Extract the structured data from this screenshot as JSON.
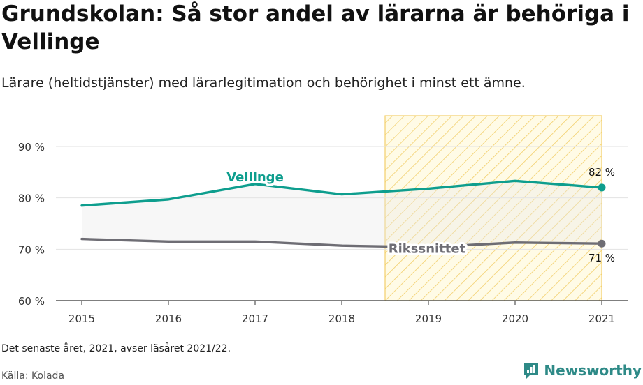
{
  "title": "Grundskolan: Så stor andel av lärarna är behöriga i Vellinge",
  "subtitle": "Lärare (heltidstjänster) med lärarlegitimation och behörighet i minst ett ämne.",
  "note": "Det senaste året, 2021, avser läsåret 2021/22.",
  "source": "Källa: Kolada",
  "brand": {
    "name": "Newsworthy",
    "icon": "bar-chart-logo-icon",
    "color": "#2e8a87"
  },
  "chart_data": {
    "type": "line",
    "x": [
      2015,
      2016,
      2017,
      2018,
      2019,
      2020,
      2021
    ],
    "x_tick_labels": [
      "2015",
      "2016",
      "2017",
      "2018",
      "2019",
      "2020",
      "2021"
    ],
    "ylim": [
      60,
      95
    ],
    "y_ticks": [
      60,
      70,
      80,
      90
    ],
    "y_tick_labels": [
      "60 %",
      "70 %",
      "80 %",
      "90 %"
    ],
    "grid": true,
    "highlight_range": [
      2018.5,
      2021
    ],
    "series": [
      {
        "name": "Vellinge",
        "color": "#0e9e8e",
        "values": [
          78.5,
          79.7,
          82.7,
          80.7,
          81.8,
          83.3,
          82.0
        ],
        "end_label": "82 %"
      },
      {
        "name": "Rikssnittet",
        "color": "#6e6d74",
        "values": [
          72.0,
          71.5,
          71.5,
          70.7,
          70.4,
          71.3,
          71.1
        ],
        "end_label": "71 %"
      }
    ]
  }
}
